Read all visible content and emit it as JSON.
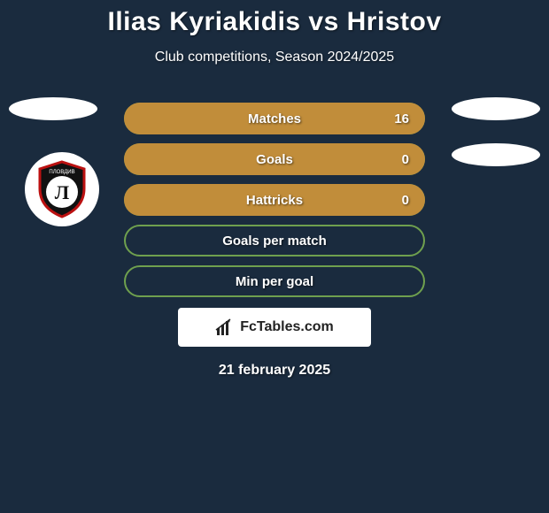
{
  "title": "Ilias Kyriakidis vs Hristov",
  "subtitle": "Club competitions, Season 2024/2025",
  "date": "21 february 2025",
  "colors": {
    "background": "#1a2b3e",
    "pill_fill": "#c18d3a",
    "pill_border": "#6fa04e",
    "white": "#ffffff"
  },
  "stats": [
    {
      "label": "Matches",
      "value": "16",
      "fill_pct": 100,
      "show_value": true
    },
    {
      "label": "Goals",
      "value": "0",
      "fill_pct": 100,
      "show_value": true
    },
    {
      "label": "Hattricks",
      "value": "0",
      "fill_pct": 100,
      "show_value": true
    },
    {
      "label": "Goals per match",
      "value": "",
      "fill_pct": 0,
      "show_value": false
    },
    {
      "label": "Min per goal",
      "value": "",
      "fill_pct": 0,
      "show_value": false
    }
  ],
  "fctables": "FcTables.com",
  "badge": {
    "top_text": "ПЛОВДИВ",
    "letter": "Л"
  }
}
